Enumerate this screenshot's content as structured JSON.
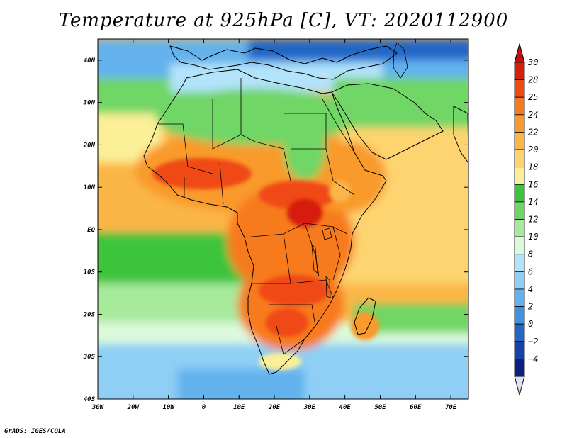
{
  "title": "Temperature at 925hPa [C], VT: 2020112900",
  "credit": "GrADS: IGES/COLA",
  "map": {
    "lon_range": [
      -30,
      75
    ],
    "lat_range": [
      -40,
      45
    ],
    "x_ticks": [
      {
        "lon": -30,
        "label": "30W"
      },
      {
        "lon": -20,
        "label": "20W"
      },
      {
        "lon": -10,
        "label": "10W"
      },
      {
        "lon": 0,
        "label": "0"
      },
      {
        "lon": 10,
        "label": "10E"
      },
      {
        "lon": 20,
        "label": "20E"
      },
      {
        "lon": 30,
        "label": "30E"
      },
      {
        "lon": 40,
        "label": "40E"
      },
      {
        "lon": 50,
        "label": "50E"
      },
      {
        "lon": 60,
        "label": "60E"
      },
      {
        "lon": 70,
        "label": "70E"
      }
    ],
    "y_ticks": [
      {
        "lat": 40,
        "label": "40N"
      },
      {
        "lat": 30,
        "label": "30N"
      },
      {
        "lat": 20,
        "label": "20N"
      },
      {
        "lat": 10,
        "label": "10N"
      },
      {
        "lat": 0,
        "label": "EQ"
      },
      {
        "lat": -10,
        "label": "10S"
      },
      {
        "lat": -20,
        "label": "20S"
      },
      {
        "lat": -30,
        "label": "30S"
      },
      {
        "lat": -40,
        "label": "40S"
      }
    ]
  },
  "colorbar": {
    "levels": [
      {
        "label": "30",
        "color": "#d61f0c"
      },
      {
        "label": "28",
        "color": "#f04a14"
      },
      {
        "label": "25",
        "color": "#f77a1e"
      },
      {
        "label": "24",
        "color": "#f99a2c"
      },
      {
        "label": "22",
        "color": "#fbb648"
      },
      {
        "label": "20",
        "color": "#fdd470"
      },
      {
        "label": "18",
        "color": "#fbef97"
      },
      {
        "label": "16",
        "color": "#3cc43c"
      },
      {
        "label": "14",
        "color": "#6fd665"
      },
      {
        "label": "12",
        "color": "#a7ea9c"
      },
      {
        "label": "10",
        "color": "#dcfadb"
      },
      {
        "label": "8",
        "color": "#b3e3fb"
      },
      {
        "label": "6",
        "color": "#8fcff5"
      },
      {
        "label": "4",
        "color": "#63b2ee"
      },
      {
        "label": "2",
        "color": "#3f92e2"
      },
      {
        "label": "0",
        "color": "#2366c6"
      },
      {
        "label": "−2",
        "color": "#1443a8"
      },
      {
        "label": "−4",
        "color": "#0c1f82"
      }
    ],
    "overflow_color": "#c80f0f",
    "underflow_color": "#e1e1f5"
  },
  "field_colors": {
    "ocean_warm": "#fdd470",
    "ocean_mild": "#fbb648",
    "ocean_cool": "#a7ea9c",
    "ocean_cold": "#8fcff5",
    "land_hot": "#f04a14",
    "land_warm": "#f99a2c",
    "sahara": "#6fd665",
    "europe": "#63b2ee"
  }
}
